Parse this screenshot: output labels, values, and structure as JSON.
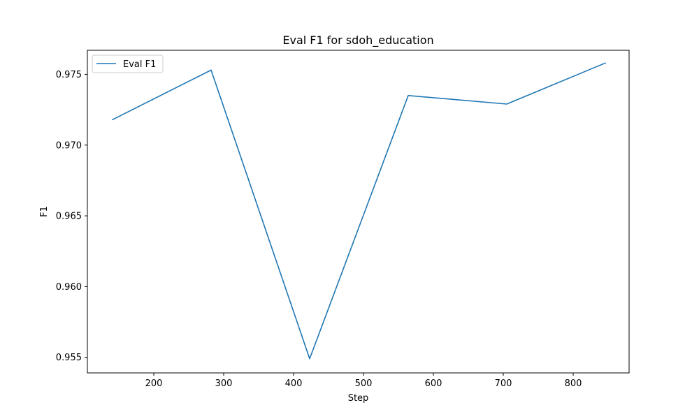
{
  "chart_data": {
    "type": "line",
    "title": "Eval F1 for sdoh_education",
    "xlabel": "Step",
    "ylabel": "F1",
    "xlim": [
      105,
      880
    ],
    "ylim": [
      0.9539,
      0.9767
    ],
    "xticks": [
      200,
      300,
      400,
      500,
      600,
      700,
      800
    ],
    "yticks": [
      0.955,
      0.96,
      0.965,
      0.97,
      0.975
    ],
    "ytick_labels": [
      "0.955",
      "0.960",
      "0.965",
      "0.970",
      "0.975"
    ],
    "grid": false,
    "legend_position": "upper left",
    "series": [
      {
        "name": "Eval F1",
        "color": "#1f77b4",
        "x": [
          141,
          282,
          423,
          564,
          705,
          846
        ],
        "y": [
          0.9718,
          0.9753,
          0.9549,
          0.9735,
          0.9729,
          0.9758
        ]
      }
    ]
  }
}
